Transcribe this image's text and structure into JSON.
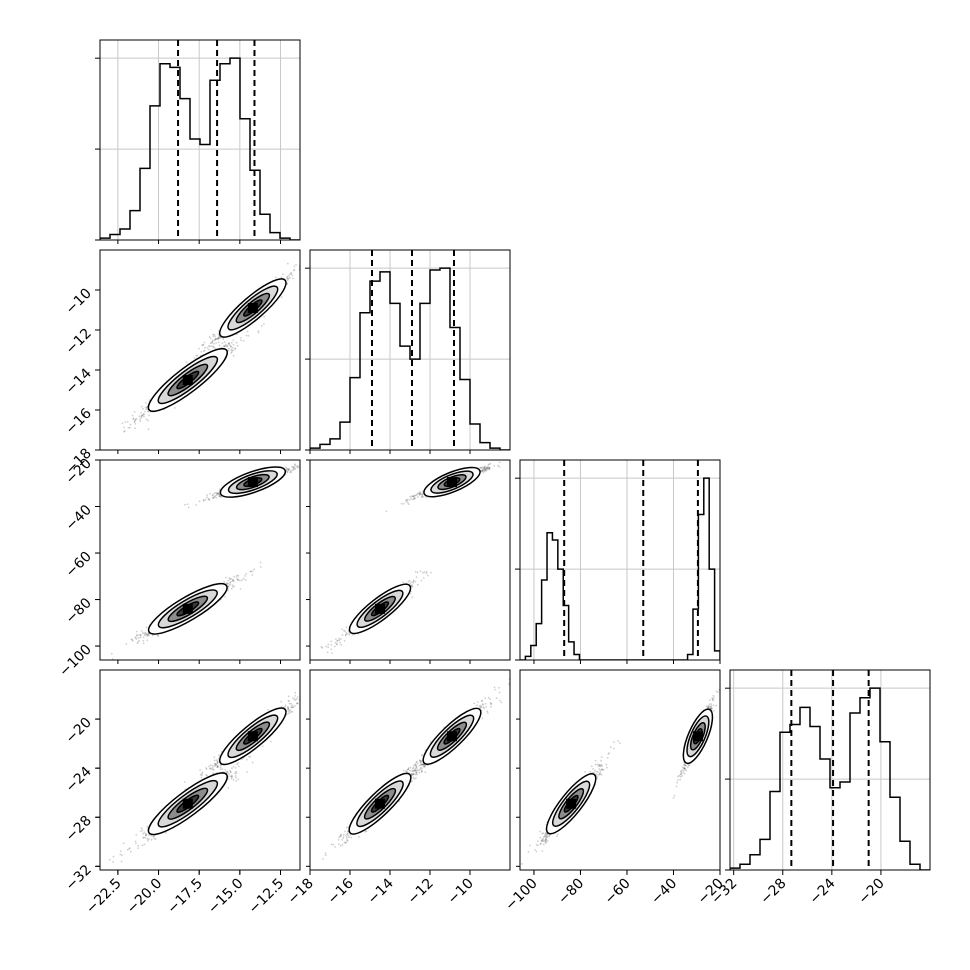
{
  "chart_data": {
    "type": "corner",
    "parameters": [
      {
        "ticks": [
          -22.5,
          -20.0,
          -17.5,
          -15.0,
          -12.5
        ],
        "tick_labels": [
          "−22.5",
          "−20.0",
          "−17.5",
          "−15.0",
          "−12.5"
        ],
        "range": [
          -23.6,
          -11.3
        ],
        "quantiles": [
          -18.8,
          -16.4,
          -14.1
        ],
        "modes": [
          [
            -18.2,
            1.2,
            0.52
          ],
          [
            -14.2,
            1.0,
            0.48
          ]
        ],
        "hist": [
          0.01,
          0.03,
          0.06,
          0.16,
          0.39,
          0.73,
          0.96,
          0.94,
          0.77,
          0.55,
          0.52,
          0.87,
          0.96,
          0.99,
          0.66,
          0.38,
          0.14,
          0.04,
          0.01,
          0.0
        ]
      },
      {
        "ticks": [
          -18,
          -16,
          -14,
          -12,
          -10
        ],
        "tick_labels": [
          "−18",
          "−16",
          "−14",
          "−12",
          "−10"
        ],
        "range": [
          -18.0,
          -8.0
        ],
        "quantiles": [
          -14.9,
          -12.9,
          -10.8
        ],
        "modes": [
          [
            -14.5,
            0.75,
            0.52
          ],
          [
            -10.9,
            0.7,
            0.48
          ]
        ],
        "hist": [
          0.01,
          0.03,
          0.06,
          0.15,
          0.39,
          0.74,
          0.91,
          0.96,
          0.79,
          0.56,
          0.49,
          0.79,
          0.97,
          0.98,
          0.66,
          0.38,
          0.14,
          0.04,
          0.01,
          0.0
        ]
      },
      {
        "ticks": [
          -100,
          -80,
          -60,
          -40,
          -20
        ],
        "tick_labels": [
          "−100",
          "−80",
          "−60",
          "−40",
          "−20"
        ],
        "range": [
          -106.0,
          -20.0
        ],
        "quantiles": [
          -87.0,
          -53.0,
          -29.5
        ],
        "modes": [
          [
            -84.0,
            5.0,
            0.5
          ],
          [
            -29.5,
            2.5,
            0.5
          ]
        ],
        "hist": [
          0.0,
          0.02,
          0.08,
          0.2,
          0.44,
          0.7,
          0.66,
          0.5,
          0.3,
          0.1,
          0.03,
          0.0,
          0.0,
          0.0,
          0.0,
          0.0,
          0.0,
          0.0,
          0.0,
          0.0,
          0.0,
          0.0,
          0.0,
          0.0,
          0.0,
          0.0,
          0.0,
          0.0,
          0.0,
          0.0,
          0.0,
          0.03,
          0.28,
          0.8,
          1.0,
          0.5,
          0.05
        ]
      },
      {
        "ticks": [
          -32,
          -28,
          -24,
          -20
        ],
        "tick_labels": [
          "−32",
          "−28",
          "−24",
          "−20"
        ],
        "range": [
          -32.3,
          -16.0
        ],
        "quantiles": [
          -27.3,
          -23.9,
          -21.0
        ],
        "modes": [
          [
            -26.9,
            1.2,
            0.5
          ],
          [
            -21.4,
            1.1,
            0.5
          ]
        ],
        "hist": [
          0.01,
          0.03,
          0.08,
          0.16,
          0.41,
          0.72,
          0.76,
          0.85,
          0.75,
          0.58,
          0.43,
          0.46,
          0.82,
          0.9,
          0.95,
          0.67,
          0.38,
          0.15,
          0.03,
          0.0
        ]
      }
    ],
    "contour_levels": [
      "0.5",
      "1.0",
      "1.5",
      "2.0 sigma"
    ],
    "grid": true
  }
}
